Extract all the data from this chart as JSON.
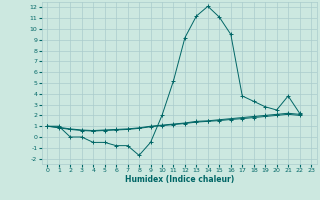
{
  "xlabel": "Humidex (Indice chaleur)",
  "bg_color": "#cce8e0",
  "grid_color": "#aacccc",
  "line_color": "#006666",
  "xlim": [
    -0.5,
    23.5
  ],
  "ylim": [
    -2.5,
    12.5
  ],
  "xtick_labels": [
    "0",
    "1",
    "2",
    "3",
    "4",
    "5",
    "6",
    "7",
    "8",
    "9",
    "10",
    "11",
    "12",
    "13",
    "14",
    "15",
    "16",
    "17",
    "18",
    "19",
    "20",
    "21",
    "22",
    "23"
  ],
  "xtick_pos": [
    0,
    1,
    2,
    3,
    4,
    5,
    6,
    7,
    8,
    9,
    10,
    11,
    12,
    13,
    14,
    15,
    16,
    17,
    18,
    19,
    20,
    21,
    22,
    23
  ],
  "ytick_labels": [
    "-2",
    "-1",
    "0",
    "1",
    "2",
    "3",
    "4",
    "5",
    "6",
    "7",
    "8",
    "9",
    "10",
    "11",
    "12"
  ],
  "ytick_pos": [
    -2,
    -1,
    0,
    1,
    2,
    3,
    4,
    5,
    6,
    7,
    8,
    9,
    10,
    11,
    12
  ],
  "series": [
    {
      "x": [
        0,
        1,
        2,
        3,
        4,
        5,
        6,
        7,
        8,
        9,
        10,
        11,
        12,
        13,
        14,
        15,
        16,
        17,
        18,
        19,
        20,
        21,
        22
      ],
      "y": [
        1,
        1,
        0,
        0,
        -0.5,
        -0.5,
        -0.8,
        -0.8,
        -1.7,
        -0.5,
        2,
        5.2,
        9.2,
        11.2,
        12.1,
        11.1,
        9.5,
        3.8,
        3.3,
        2.8,
        2.5,
        3.8,
        2.2
      ]
    },
    {
      "x": [
        0,
        1,
        2,
        3,
        4,
        5,
        6,
        7,
        8,
        9,
        10,
        11,
        12,
        13,
        14,
        15,
        16,
        17,
        18,
        19,
        20,
        21,
        22
      ],
      "y": [
        1.0,
        0.9,
        0.75,
        0.65,
        0.6,
        0.65,
        0.7,
        0.75,
        0.85,
        1.0,
        1.1,
        1.2,
        1.3,
        1.45,
        1.5,
        1.6,
        1.7,
        1.8,
        1.9,
        2.0,
        2.1,
        2.2,
        2.1
      ]
    },
    {
      "x": [
        0,
        1,
        2,
        3,
        4,
        5,
        6,
        7,
        8,
        9,
        10,
        11,
        12,
        13,
        14,
        15,
        16,
        17,
        18,
        19,
        20,
        21,
        22
      ],
      "y": [
        1.0,
        0.85,
        0.7,
        0.6,
        0.55,
        0.6,
        0.65,
        0.7,
        0.8,
        0.95,
        1.05,
        1.15,
        1.25,
        1.38,
        1.45,
        1.52,
        1.62,
        1.7,
        1.8,
        1.9,
        2.0,
        2.1,
        2.0
      ]
    }
  ]
}
